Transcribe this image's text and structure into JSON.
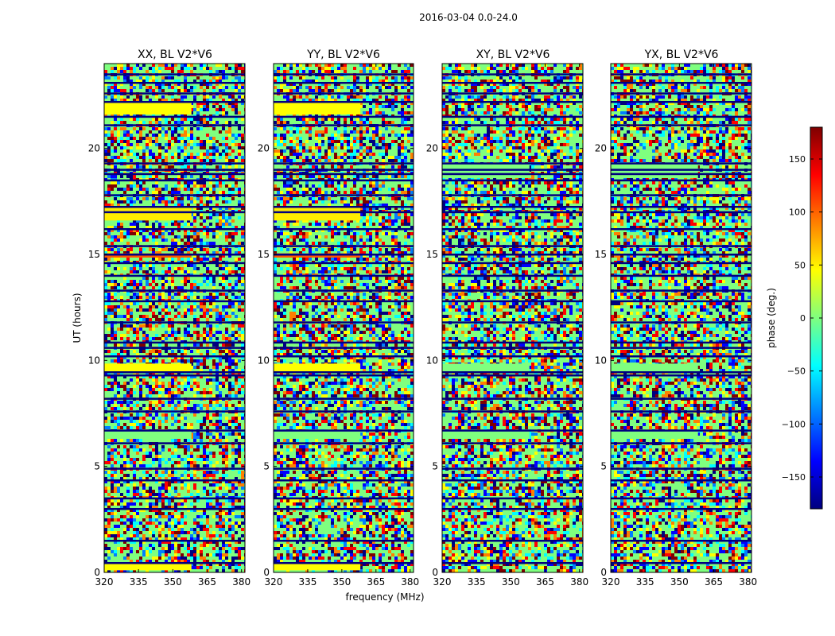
{
  "chart_data": {
    "type": "heatmap",
    "title": "2016-03-04 0.0-24.0",
    "xlabel": "frequency (MHz)",
    "ylabel": "UT (hours)",
    "xlim": [
      320,
      381.5
    ],
    "ylim": [
      0,
      24
    ],
    "x_ticks": [
      "320",
      "335",
      "350",
      "365",
      "380"
    ],
    "y_ticks": [
      "0",
      "5",
      "10",
      "15",
      "20"
    ],
    "panels": [
      {
        "title": "XX, BL V2*V6"
      },
      {
        "title": "YY, BL V2*V6"
      },
      {
        "title": "XY, BL V2*V6"
      },
      {
        "title": "YX, BL V2*V6"
      }
    ],
    "colorbar": {
      "label": "phase (deg.)",
      "range": [
        -180,
        180
      ],
      "ticks": [
        "150",
        "100",
        "50",
        "0",
        "−50",
        "−100",
        "−150"
      ],
      "colormap": [
        "#00007f",
        "#0000ff",
        "#007fff",
        "#00ffff",
        "#7fff7f",
        "#ffff00",
        "#ff7f00",
        "#ff0000",
        "#7f0000"
      ]
    },
    "flagged_rows_ut": [
      0.45,
      1.5,
      3.0,
      3.5,
      4.35,
      4.9,
      6.1,
      6.7,
      7.6,
      8.2,
      9.3,
      9.45,
      10.2,
      10.6,
      10.85,
      11.8,
      12.8,
      13.3,
      14.0,
      14.6,
      15.0,
      15.4,
      16.2,
      17.0,
      17.25,
      17.8,
      18.5,
      18.8,
      19.0,
      19.3,
      21.1,
      21.5,
      22.2,
      22.6,
      23.1,
      23.5
    ],
    "bands": [
      {
        "ut": [
          0.1,
          0.4
        ],
        "color": "#ffff00",
        "panels": [
          0,
          1
        ]
      },
      {
        "ut": [
          6.3,
          6.7
        ],
        "color": "#7fff7f",
        "panels": [
          0,
          1,
          2,
          3
        ]
      },
      {
        "ut": [
          9.45,
          9.85
        ],
        "color": "#ffff00",
        "panels": [
          0,
          1
        ]
      },
      {
        "ut": [
          9.45,
          9.85
        ],
        "color": "#7fff7f",
        "panels": [
          2,
          3
        ]
      },
      {
        "ut": [
          14.85,
          15.05
        ],
        "color": "#ff5500",
        "panels": [
          0,
          1
        ]
      },
      {
        "ut": [
          16.6,
          17.2
        ],
        "color": "#ffee00",
        "panels": [
          0,
          1
        ]
      },
      {
        "ut": [
          21.6,
          22.2
        ],
        "color": "#ffff00",
        "panels": [
          0,
          1
        ]
      },
      {
        "ut": [
          18.6,
          19.3
        ],
        "color": "#7fff7f",
        "panels": [
          2,
          3
        ]
      }
    ]
  }
}
